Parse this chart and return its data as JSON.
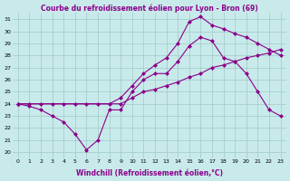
{
  "title": "Courbe du refroidissement éolien pour Lyon - Bron (69)",
  "xlabel": "Windchill (Refroidissement éolien,°C)",
  "xlim": [
    -0.5,
    23.5
  ],
  "ylim": [
    19.5,
    31.5
  ],
  "yticks": [
    20,
    21,
    22,
    23,
    24,
    25,
    26,
    27,
    28,
    29,
    30,
    31
  ],
  "xticks": [
    0,
    1,
    2,
    3,
    4,
    5,
    6,
    7,
    8,
    9,
    10,
    11,
    12,
    13,
    14,
    15,
    16,
    17,
    18,
    19,
    20,
    21,
    22,
    23
  ],
  "line_color": "#8b008b",
  "bg_color": "#c8eaea",
  "grid_color": "#a0c8c8",
  "line1_x": [
    0,
    1,
    2,
    3,
    4,
    5,
    6,
    7,
    8,
    9,
    10,
    11,
    12,
    13,
    14,
    15,
    16,
    17,
    18,
    19,
    20,
    21,
    22,
    23
  ],
  "line1_y": [
    24.0,
    23.8,
    23.5,
    23.0,
    22.5,
    21.5,
    20.2,
    21.0,
    23.5,
    23.5,
    25.0,
    26.0,
    26.5,
    26.5,
    27.5,
    28.8,
    29.5,
    29.2,
    27.8,
    27.5,
    26.5,
    25.0,
    23.5,
    23.0
  ],
  "line2_x": [
    0,
    9,
    10,
    11,
    12,
    13,
    14,
    15,
    16,
    17,
    18,
    19,
    20,
    21,
    22,
    23
  ],
  "line2_y": [
    24.0,
    24.0,
    24.5,
    25.0,
    25.2,
    25.5,
    25.8,
    26.2,
    26.5,
    27.0,
    27.2,
    27.5,
    27.8,
    28.0,
    28.2,
    28.5
  ],
  "line3_x": [
    0,
    1,
    2,
    3,
    4,
    5,
    6,
    7,
    8,
    9,
    10,
    11,
    12,
    13,
    14,
    15,
    16,
    17,
    18,
    19,
    20,
    21,
    22,
    23
  ],
  "line3_y": [
    24.0,
    24.0,
    24.0,
    24.0,
    24.0,
    24.0,
    24.0,
    24.0,
    24.0,
    24.5,
    25.5,
    26.5,
    27.2,
    27.8,
    29.0,
    30.8,
    31.2,
    30.5,
    30.2,
    29.8,
    29.5,
    29.0,
    28.5,
    28.0
  ],
  "marker": "D",
  "markersize": 2.5,
  "linewidth": 0.8,
  "title_fontsize": 5.5,
  "xlabel_fontsize": 5.5,
  "tick_fontsize": 4.5
}
